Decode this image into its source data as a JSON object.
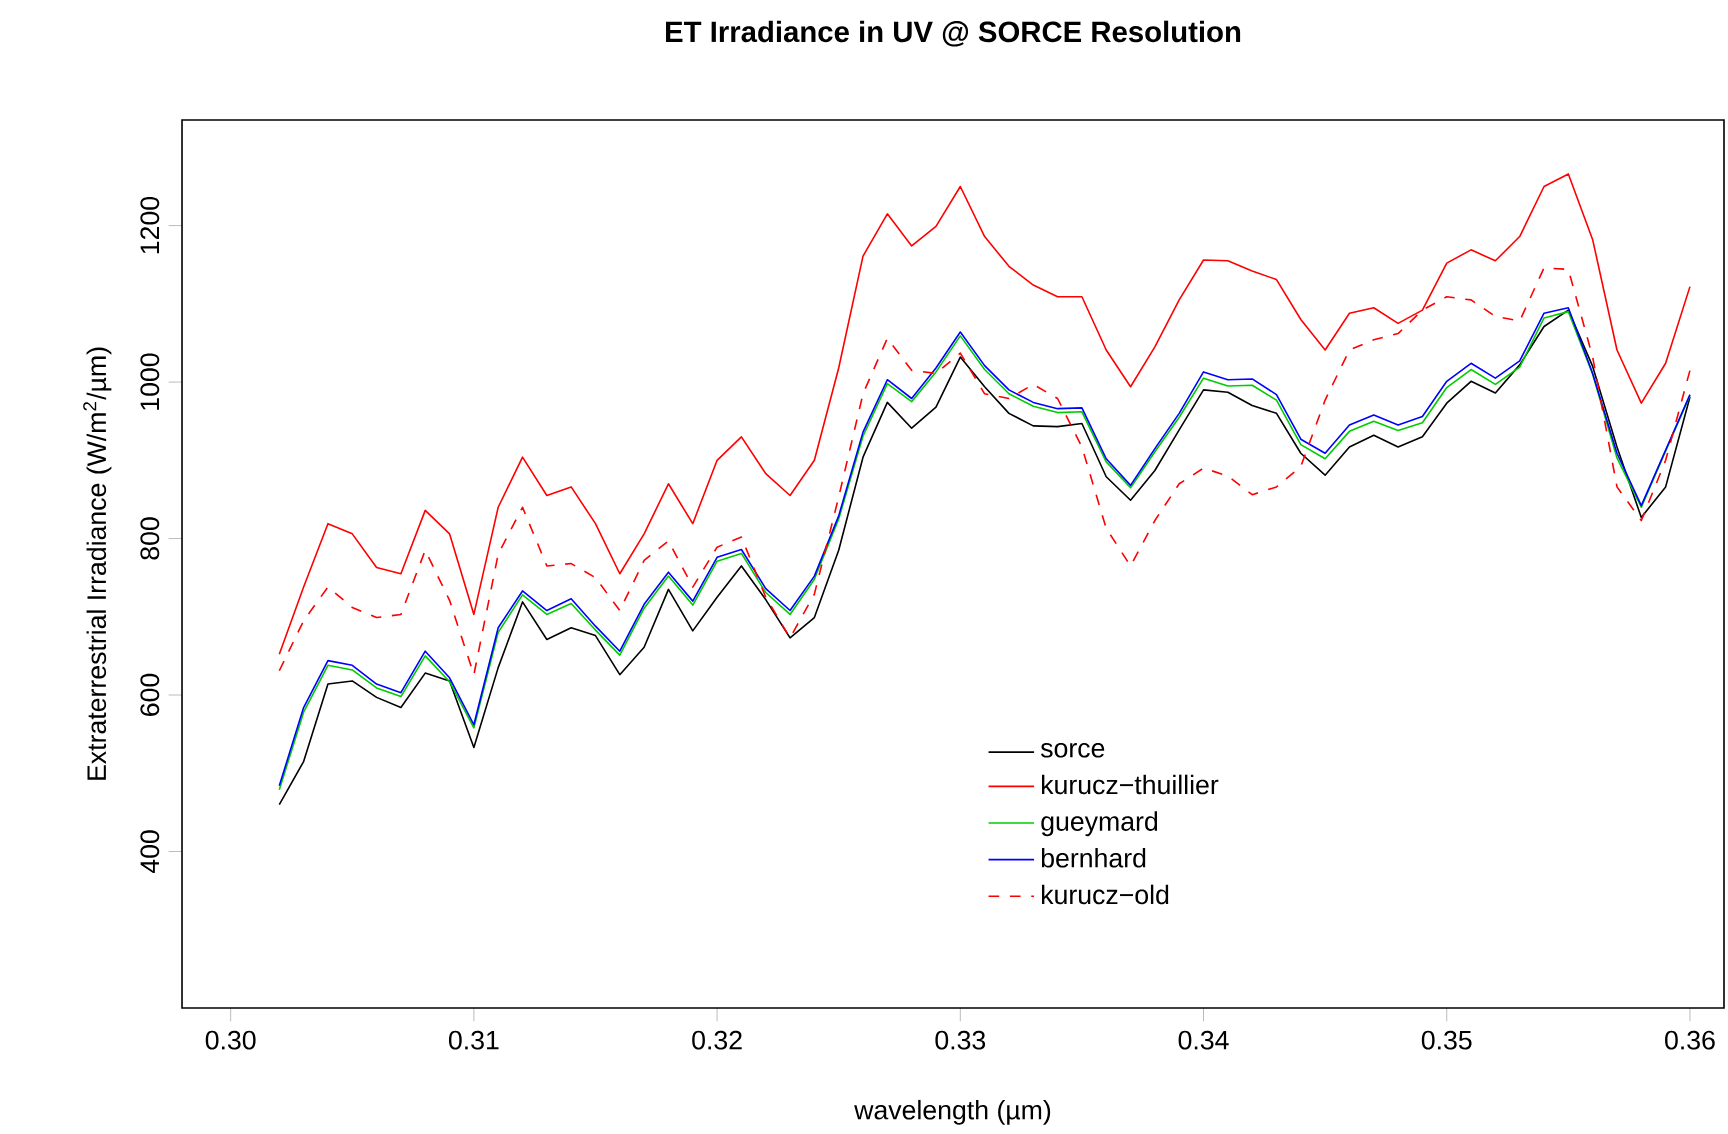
{
  "chart_data": {
    "type": "line",
    "title": "ET Irradiance in UV @ SORCE Resolution",
    "xlabel": "wavelength (µm)",
    "ylabel": "Extraterrestrial Irradiance (W/m$^{2}$/µm)",
    "x": [
      0.302,
      0.303,
      0.304,
      0.305,
      0.306,
      0.307,
      0.308,
      0.309,
      0.31,
      0.311,
      0.312,
      0.313,
      0.314,
      0.315,
      0.316,
      0.317,
      0.318,
      0.319,
      0.32,
      0.321,
      0.322,
      0.323,
      0.324,
      0.325,
      0.326,
      0.327,
      0.328,
      0.329,
      0.33,
      0.331,
      0.332,
      0.333,
      0.334,
      0.335,
      0.336,
      0.337,
      0.338,
      0.339,
      0.34,
      0.341,
      0.342,
      0.343,
      0.344,
      0.345,
      0.346,
      0.347,
      0.348,
      0.349,
      0.35,
      0.351,
      0.352,
      0.353,
      0.354,
      0.355,
      0.356,
      0.357,
      0.358,
      0.359,
      0.36
    ],
    "series": [
      {
        "name": "sorce",
        "color": "#000000",
        "line_style": "solid",
        "values": [
          460,
          515,
          614,
          618,
          597,
          584,
          628,
          618,
          533,
          635,
          719,
          671,
          686,
          676,
          626,
          661,
          735,
          682,
          725,
          765,
          722,
          673,
          699,
          785,
          904,
          974,
          941,
          968,
          1032,
          994,
          960,
          944,
          943,
          947,
          879,
          849,
          887,
          939,
          990,
          987,
          970,
          960,
          909,
          881,
          917,
          932,
          917,
          930,
          973,
          1001,
          986,
          1022,
          1071,
          1092,
          1020,
          917,
          827,
          866,
          981
        ]
      },
      {
        "name": "kurucz−thuillier",
        "color": "#ff0000",
        "line_style": "solid",
        "values": [
          652,
          738,
          819,
          806,
          763,
          755,
          836,
          806,
          703,
          840,
          904,
          855,
          866,
          819,
          755,
          806,
          870,
          819,
          900,
          930,
          883,
          855,
          900,
          1018,
          1161,
          1215,
          1174,
          1199,
          1250,
          1186,
          1148,
          1124,
          1109,
          1109,
          1041,
          994,
          1045,
          1105,
          1156,
          1155,
          1142,
          1131,
          1080,
          1041,
          1088,
          1095,
          1075,
          1092,
          1152,
          1169,
          1155,
          1186,
          1250,
          1266,
          1182,
          1041,
          973,
          1024,
          1122
        ]
      },
      {
        "name": "gueymard",
        "color": "#00cd00",
        "line_style": "solid",
        "values": [
          479,
          578,
          638,
          632,
          609,
          598,
          650,
          617,
          558,
          680,
          728,
          703,
          717,
          683,
          651,
          711,
          752,
          715,
          771,
          781,
          731,
          703,
          748,
          825,
          931,
          998,
          975,
          1013,
          1059,
          1016,
          985,
          969,
          961,
          962,
          898,
          865,
          911,
          955,
          1005,
          995,
          996,
          977,
          920,
          902,
          937,
          950,
          938,
          948,
          993,
          1016,
          997,
          1019,
          1082,
          1090,
          1010,
          903,
          840,
          912,
          983
        ]
      },
      {
        "name": "bernhard",
        "color": "#0000ff",
        "line_style": "solid",
        "values": [
          484,
          584,
          644,
          638,
          614,
          603,
          656,
          622,
          562,
          686,
          733,
          708,
          723,
          688,
          656,
          716,
          757,
          720,
          776,
          786,
          736,
          708,
          752,
          829,
          936,
          1003,
          979,
          1018,
          1064,
          1021,
          990,
          974,
          966,
          967,
          902,
          868,
          915,
          960,
          1013,
          1003,
          1004,
          984,
          927,
          909,
          945,
          958,
          945,
          956,
          1001,
          1024,
          1005,
          1027,
          1088,
          1095,
          1011,
          909,
          842,
          913,
          984
        ]
      },
      {
        "name": "kurucz−old",
        "color": "#ff0000",
        "line_style": "dashed",
        "values": [
          631,
          695,
          738,
          712,
          699,
          703,
          785,
          721,
          626,
          780,
          840,
          765,
          768,
          750,
          708,
          772,
          797,
          738,
          789,
          802,
          725,
          673,
          729,
          853,
          985,
          1056,
          1015,
          1011,
          1037,
          985,
          979,
          997,
          979,
          917,
          813,
          765,
          823,
          870,
          890,
          880,
          856,
          866,
          892,
          977,
          1041,
          1054,
          1062,
          1092,
          1109,
          1105,
          1084,
          1078,
          1146,
          1144,
          1032,
          866,
          823,
          900,
          1015
        ]
      }
    ],
    "xlim": [
      0.298,
      0.3614
    ],
    "ylim": [
      200,
      1335
    ],
    "xticks": [
      {
        "value": 0.3,
        "label": "0.30"
      },
      {
        "value": 0.31,
        "label": "0.31"
      },
      {
        "value": 0.32,
        "label": "0.32"
      },
      {
        "value": 0.33,
        "label": "0.33"
      },
      {
        "value": 0.34,
        "label": "0.34"
      },
      {
        "value": 0.35,
        "label": "0.35"
      },
      {
        "value": 0.36,
        "label": "0.36"
      }
    ],
    "yticks": [
      400,
      600,
      800,
      1000,
      1200
    ],
    "grid": false,
    "legend": "bottom",
    "marker": "none"
  }
}
